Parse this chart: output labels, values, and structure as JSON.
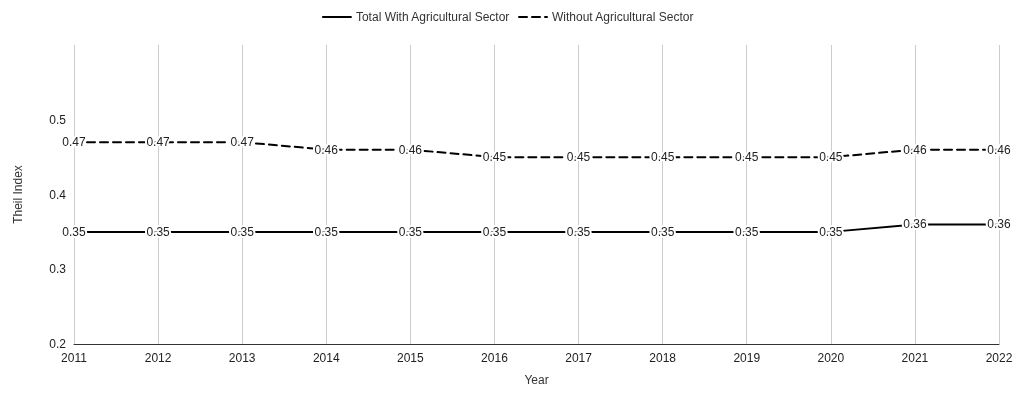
{
  "chart_data": {
    "type": "line",
    "xlabel": "Year",
    "ylabel": "Theil Index",
    "categories": [
      "2011",
      "2012",
      "2013",
      "2014",
      "2015",
      "2016",
      "2017",
      "2018",
      "2019",
      "2020",
      "2021",
      "2022"
    ],
    "series": [
      {
        "name": "Total With Agricultural Sector",
        "color": "#000000",
        "line_style": "solid",
        "values": [
          0.35,
          0.35,
          0.35,
          0.35,
          0.35,
          0.35,
          0.35,
          0.35,
          0.35,
          0.35,
          0.36,
          0.36
        ]
      },
      {
        "name": "Without Agricultural Sector",
        "color": "#000000",
        "line_style": "dashed",
        "values": [
          0.47,
          0.47,
          0.47,
          0.46,
          0.46,
          0.45,
          0.45,
          0.45,
          0.45,
          0.45,
          0.46,
          0.46
        ]
      }
    ],
    "ylim": [
      0.2,
      0.6
    ],
    "yticks": [
      0.2,
      0.3,
      0.4,
      0.5
    ],
    "grid": "x",
    "legend": "top",
    "marker": "none",
    "data_labels": true
  }
}
